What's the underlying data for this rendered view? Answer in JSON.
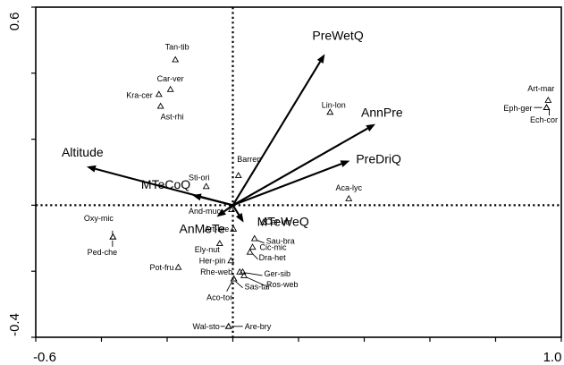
{
  "chart_data": {
    "type": "scatter",
    "subtype": "ordination-biplot",
    "title": "",
    "xlabel": "",
    "ylabel": "",
    "xlim": [
      -0.6,
      1.0
    ],
    "ylim": [
      -0.4,
      0.6
    ],
    "x_tick_labels": [
      "-0.6",
      "1.0"
    ],
    "y_tick_labels": [
      "0.6",
      "-0.4"
    ],
    "x_ticks": [
      -0.6,
      -0.4,
      -0.2,
      0.0,
      0.2,
      0.4,
      0.6,
      0.8,
      1.0
    ],
    "y_ticks": [
      -0.4,
      -0.2,
      0.0,
      0.2,
      0.4,
      0.6
    ],
    "zero_lines": true,
    "grid": false,
    "legend": "none",
    "species": [
      {
        "name": "Tan-tib",
        "x": -0.175,
        "y": 0.441
      },
      {
        "name": "Car-ver",
        "x": -0.19,
        "y": 0.351
      },
      {
        "name": "Kra-cer",
        "x": -0.225,
        "y": 0.336
      },
      {
        "name": "Ast-rhi",
        "x": -0.22,
        "y": 0.3
      },
      {
        "name": "Sti-ori",
        "x": -0.081,
        "y": 0.057
      },
      {
        "name": "Barren",
        "x": 0.017,
        "y": 0.09
      },
      {
        "name": "Lin-lon",
        "x": 0.296,
        "y": 0.282
      },
      {
        "name": "Art-mar",
        "x": 0.96,
        "y": 0.318
      },
      {
        "name": "Eph-ger",
        "x": 0.955,
        "y": 0.296
      },
      {
        "name": "Ech-cor",
        "x": 0.955,
        "y": 0.296
      },
      {
        "name": "Aca-lyc",
        "x": 0.353,
        "y": 0.02
      },
      {
        "name": "Oxy-mic",
        "x": -0.365,
        "y": -0.096
      },
      {
        "name": "Ped-che",
        "x": -0.365,
        "y": -0.096
      },
      {
        "name": "And-muc",
        "x": -0.004,
        "y": -0.013
      },
      {
        "name": "Art-bre",
        "x": 0.002,
        "y": -0.072
      },
      {
        "name": "Car-utr",
        "x": 0.094,
        "y": -0.051
      },
      {
        "name": "Ely-nut",
        "x": -0.04,
        "y": -0.116
      },
      {
        "name": "Sau-bra",
        "x": 0.066,
        "y": -0.101
      },
      {
        "name": "Cic-mic",
        "x": 0.06,
        "y": -0.127
      },
      {
        "name": "Her-pin",
        "x": -0.006,
        "y": -0.168
      },
      {
        "name": "Dra-het",
        "x": 0.052,
        "y": -0.142
      },
      {
        "name": "Pot-fru",
        "x": -0.166,
        "y": -0.188
      },
      {
        "name": "Rhe-web",
        "x": 0.021,
        "y": -0.202
      },
      {
        "name": "Ger-sib",
        "x": 0.03,
        "y": -0.202
      },
      {
        "name": "Ros-web",
        "x": 0.034,
        "y": -0.213
      },
      {
        "name": "Sas-tar",
        "x": 0.003,
        "y": -0.223
      },
      {
        "name": "Aco-tor",
        "x": 0.003,
        "y": -0.223
      },
      {
        "name": "Wal-sto",
        "x": -0.013,
        "y": -0.367
      },
      {
        "name": "Are-bry",
        "x": -0.013,
        "y": -0.367
      }
    ],
    "vectors": [
      {
        "name": "PreWetQ",
        "x": 0.28,
        "y": 0.458
      },
      {
        "name": "AnnPre",
        "x": 0.434,
        "y": 0.246
      },
      {
        "name": "PreDriQ",
        "x": 0.356,
        "y": 0.135
      },
      {
        "name": "Altitude",
        "x": -0.445,
        "y": 0.117
      },
      {
        "name": "MTeCoQ",
        "x": -0.124,
        "y": 0.031
      },
      {
        "name": "AnMeTe",
        "x": -0.049,
        "y": -0.035
      },
      {
        "name": "MTeWeQ",
        "x": 0.033,
        "y": -0.052
      }
    ]
  }
}
